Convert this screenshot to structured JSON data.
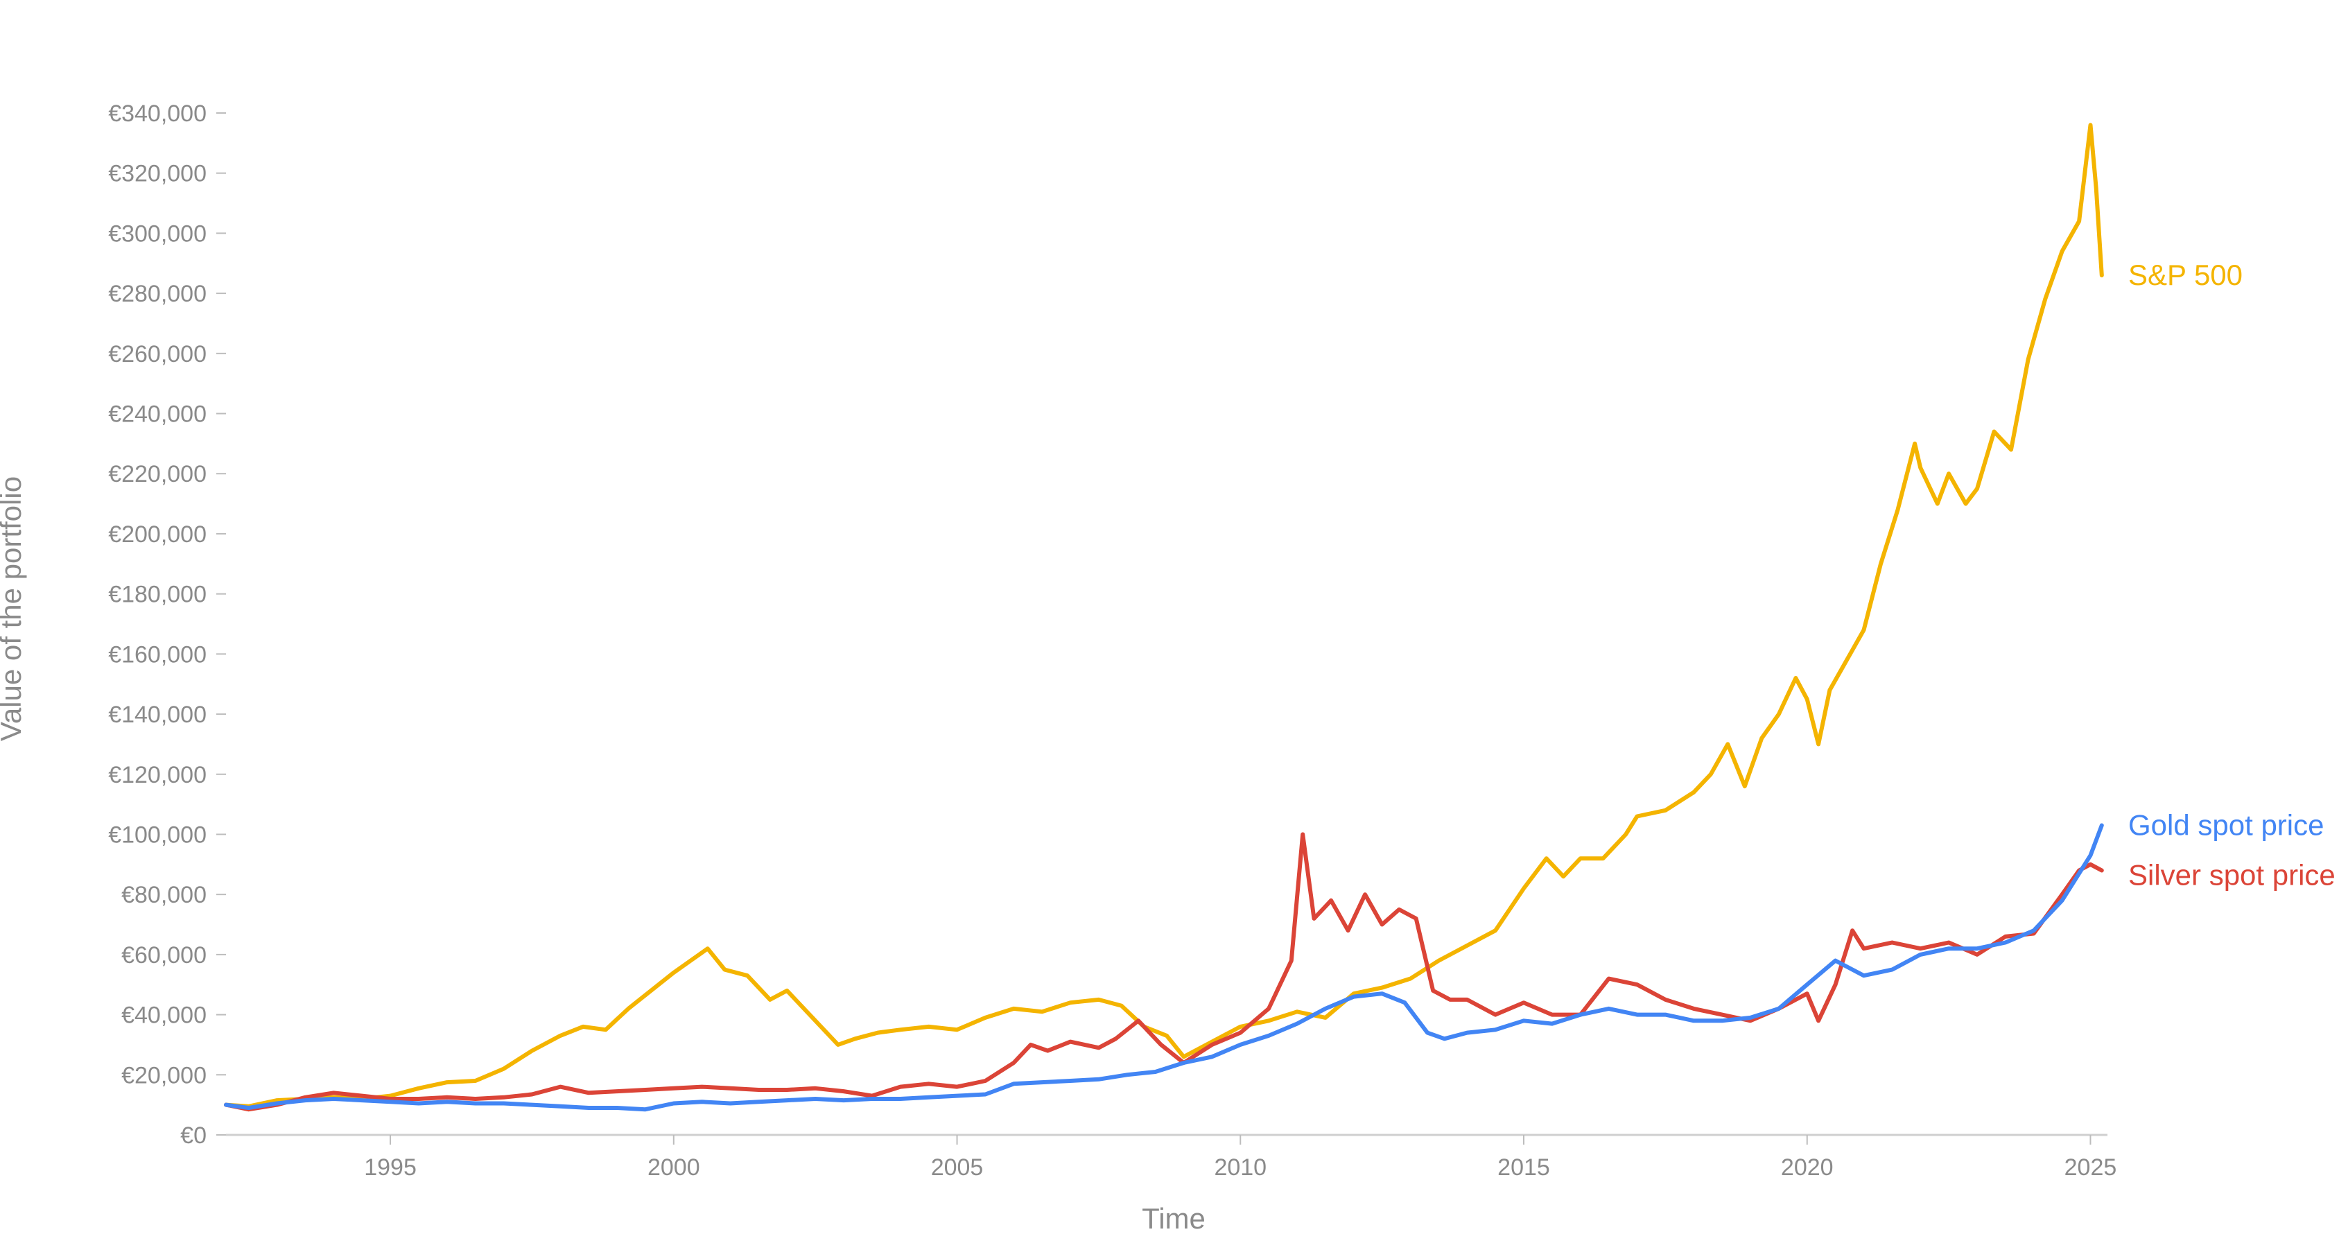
{
  "chart_data": {
    "type": "line",
    "xlabel": "Time",
    "ylabel": "Value of the portfolio",
    "xlim": [
      1992.1,
      2025.3
    ],
    "ylim": [
      0,
      340000
    ],
    "x_ticks": [
      1995,
      2000,
      2005,
      2010,
      2015,
      2020,
      2025
    ],
    "x_tick_labels": [
      "1995",
      "2000",
      "2005",
      "2010",
      "2015",
      "2020",
      "2025"
    ],
    "y_ticks": [
      0,
      20000,
      40000,
      60000,
      80000,
      100000,
      120000,
      140000,
      160000,
      180000,
      200000,
      220000,
      240000,
      260000,
      280000,
      300000,
      320000,
      340000
    ],
    "y_tick_labels": [
      "€0",
      "€20,000",
      "€40,000",
      "€60,000",
      "€80,000",
      "€100,000",
      "€120,000",
      "€140,000",
      "€160,000",
      "€180,000",
      "€200,000",
      "€220,000",
      "€240,000",
      "€260,000",
      "€280,000",
      "€300,000",
      "€320,000",
      "€340,000"
    ],
    "grid": false,
    "legend": "end-of-line labels",
    "series": [
      {
        "name": "S&P 500",
        "color": "#f4b400",
        "x": [
          1992.1,
          1992.5,
          1993.0,
          1993.5,
          1994.0,
          1994.5,
          1995.0,
          1995.5,
          1996.0,
          1996.5,
          1997.0,
          1997.5,
          1998.0,
          1998.4,
          1998.8,
          1999.2,
          1999.6,
          2000.0,
          2000.3,
          2000.6,
          2000.9,
          2001.3,
          2001.7,
          2002.0,
          2002.5,
          2002.9,
          2003.2,
          2003.6,
          2004.0,
          2004.5,
          2005.0,
          2005.5,
          2006.0,
          2006.5,
          2007.0,
          2007.5,
          2007.9,
          2008.3,
          2008.7,
          2009.0,
          2009.3,
          2009.7,
          2010.0,
          2010.5,
          2011.0,
          2011.5,
          2012.0,
          2012.5,
          2013.0,
          2013.5,
          2014.0,
          2014.5,
          2015.0,
          2015.4,
          2015.7,
          2016.0,
          2016.4,
          2016.8,
          2017.0,
          2017.5,
          2018.0,
          2018.3,
          2018.6,
          2018.9,
          2019.2,
          2019.5,
          2019.8,
          2020.0,
          2020.2,
          2020.4,
          2020.7,
          2021.0,
          2021.3,
          2021.6,
          2021.9,
          2022.0,
          2022.3,
          2022.5,
          2022.8,
          2023.0,
          2023.3,
          2023.6,
          2023.9,
          2024.2,
          2024.5,
          2024.8,
          2025.0,
          2025.1,
          2025.2
        ],
        "values": [
          10000,
          9500,
          11500,
          12000,
          12500,
          12000,
          13000,
          15500,
          17500,
          18000,
          22000,
          28000,
          33000,
          36000,
          35000,
          42000,
          48000,
          54000,
          58000,
          62000,
          55000,
          53000,
          45000,
          48000,
          38000,
          30000,
          32000,
          34000,
          35000,
          36000,
          35000,
          39000,
          42000,
          41000,
          44000,
          45000,
          43000,
          36000,
          33000,
          26000,
          29000,
          33000,
          36000,
          38000,
          41000,
          39000,
          47000,
          49000,
          52000,
          58000,
          63000,
          68000,
          82000,
          92000,
          86000,
          92000,
          92000,
          100000,
          106000,
          108000,
          114000,
          120000,
          130000,
          116000,
          132000,
          140000,
          152000,
          145000,
          130000,
          148000,
          158000,
          168000,
          190000,
          208000,
          230000,
          222000,
          210000,
          220000,
          210000,
          215000,
          234000,
          228000,
          258000,
          278000,
          294000,
          304000,
          336000,
          315000,
          286000
        ]
      },
      {
        "name": "Gold spot price",
        "color": "#4285f4",
        "x": [
          1992.1,
          1992.5,
          1993.0,
          1993.5,
          1994.0,
          1994.5,
          1995.0,
          1995.5,
          1996.0,
          1996.5,
          1997.0,
          1997.5,
          1998.0,
          1998.5,
          1999.0,
          1999.5,
          2000.0,
          2000.5,
          2001.0,
          2001.5,
          2002.0,
          2002.5,
          2003.0,
          2003.5,
          2004.0,
          2004.5,
          2005.0,
          2005.5,
          2006.0,
          2006.5,
          2007.0,
          2007.5,
          2008.0,
          2008.5,
          2009.0,
          2009.5,
          2010.0,
          2010.5,
          2011.0,
          2011.5,
          2012.0,
          2012.5,
          2012.9,
          2013.3,
          2013.6,
          2014.0,
          2014.5,
          2015.0,
          2015.5,
          2016.0,
          2016.5,
          2017.0,
          2017.5,
          2018.0,
          2018.5,
          2019.0,
          2019.5,
          2020.0,
          2020.5,
          2021.0,
          2021.5,
          2022.0,
          2022.5,
          2023.0,
          2023.5,
          2024.0,
          2024.5,
          2025.0,
          2025.2
        ],
        "values": [
          10000,
          9000,
          10500,
          11500,
          12000,
          11500,
          11000,
          10500,
          11000,
          10500,
          10500,
          10000,
          9500,
          9000,
          9000,
          8500,
          10500,
          11000,
          10500,
          11000,
          11500,
          12000,
          11500,
          12000,
          12000,
          12500,
          13000,
          13500,
          17000,
          17500,
          18000,
          18500,
          20000,
          21000,
          24000,
          26000,
          30000,
          33000,
          37000,
          42000,
          46000,
          47000,
          44000,
          34000,
          32000,
          34000,
          35000,
          38000,
          37000,
          40000,
          42000,
          40000,
          40000,
          38000,
          38000,
          39000,
          42000,
          50000,
          58000,
          53000,
          55000,
          60000,
          62000,
          62000,
          64000,
          68000,
          78000,
          93000,
          103000
        ]
      },
      {
        "name": "Silver spot price",
        "color": "#db4437",
        "x": [
          1992.1,
          1992.5,
          1993.0,
          1993.5,
          1994.0,
          1994.5,
          1995.0,
          1995.5,
          1996.0,
          1996.5,
          1997.0,
          1997.5,
          1998.0,
          1998.5,
          1999.0,
          1999.5,
          2000.0,
          2000.5,
          2001.0,
          2001.5,
          2002.0,
          2002.5,
          2003.0,
          2003.5,
          2004.0,
          2004.5,
          2005.0,
          2005.5,
          2006.0,
          2006.3,
          2006.6,
          2007.0,
          2007.5,
          2007.8,
          2008.2,
          2008.6,
          2009.0,
          2009.5,
          2010.0,
          2010.5,
          2010.9,
          2011.1,
          2011.3,
          2011.6,
          2011.9,
          2012.2,
          2012.5,
          2012.8,
          2013.1,
          2013.4,
          2013.7,
          2014.0,
          2014.5,
          2015.0,
          2015.5,
          2016.0,
          2016.5,
          2017.0,
          2017.5,
          2018.0,
          2018.5,
          2019.0,
          2019.5,
          2020.0,
          2020.2,
          2020.5,
          2020.8,
          2021.0,
          2021.5,
          2022.0,
          2022.5,
          2023.0,
          2023.5,
          2024.0,
          2024.5,
          2024.8,
          2025.0,
          2025.2
        ],
        "values": [
          10000,
          8500,
          10000,
          12500,
          14000,
          13000,
          12000,
          12000,
          12500,
          12000,
          12500,
          13500,
          16000,
          14000,
          14500,
          15000,
          15500,
          16000,
          15500,
          15000,
          15000,
          15500,
          14500,
          13000,
          16000,
          17000,
          16000,
          18000,
          24000,
          30000,
          28000,
          31000,
          29000,
          32000,
          38000,
          30000,
          24000,
          30000,
          34000,
          42000,
          58000,
          100000,
          72000,
          78000,
          68000,
          80000,
          70000,
          75000,
          72000,
          48000,
          45000,
          45000,
          40000,
          44000,
          40000,
          40000,
          52000,
          50000,
          45000,
          42000,
          40000,
          38000,
          42000,
          47000,
          38000,
          50000,
          68000,
          62000,
          64000,
          62000,
          64000,
          60000,
          66000,
          67000,
          80000,
          88000,
          90000,
          88000
        ]
      }
    ]
  }
}
